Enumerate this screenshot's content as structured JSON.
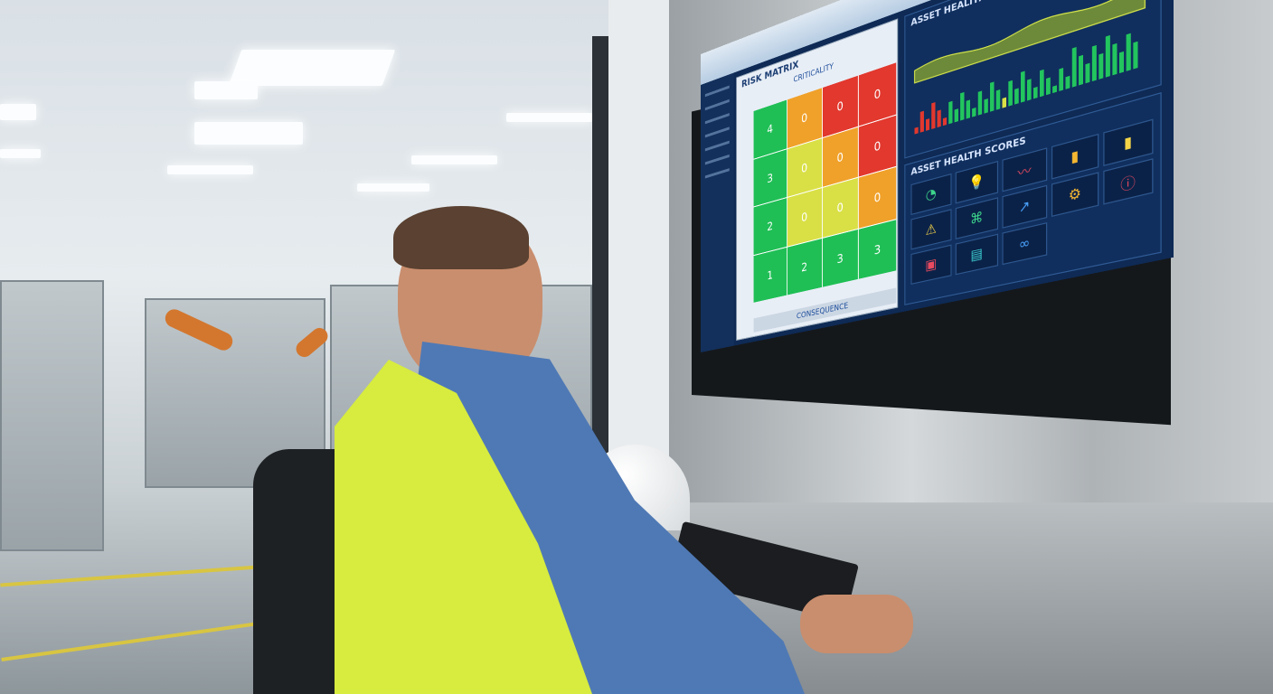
{
  "dashboard": {
    "matrix_title": "RISK MATRIX",
    "matrix_axis_top": "CRITICALITY",
    "matrix_axis_bottom": "CONSEQUENCE",
    "matrix_values": [
      [
        4,
        0,
        0,
        0
      ],
      [
        3,
        0,
        0,
        0
      ],
      [
        2,
        0,
        0,
        0
      ],
      [
        1,
        2,
        3,
        3
      ]
    ],
    "matrix_colors": [
      [
        "#1fbf55",
        "#f0a12a",
        "#e2382e",
        "#e2382e"
      ],
      [
        "#1fbf55",
        "#d9e046",
        "#f0a12a",
        "#e2382e"
      ],
      [
        "#1fbf55",
        "#d9e046",
        "#d9e046",
        "#f0a12a"
      ],
      [
        "#1fbf55",
        "#1fbf55",
        "#1fbf55",
        "#1fbf55"
      ]
    ],
    "chart_title": "ASSET HEALTH SCORES",
    "health_title": "ASSET HEALTH SCORES",
    "tile_icons": [
      "gauge-icon",
      "lightbulb-icon",
      "waveform-icon",
      "bar-chart-icon",
      "signal-bars-icon",
      "warning-icon",
      "network-icon",
      "line-chart-icon",
      "gear-icon",
      "alert-circle-icon",
      "battery-icon",
      "clipboard-icon",
      "link-icon"
    ],
    "tile_glyphs": [
      "◔",
      "💡",
      "〰",
      "▮",
      "▮",
      "⚠",
      "⌘",
      "↗",
      "⚙",
      "ⓘ",
      "▣",
      "▤",
      "∞"
    ],
    "colors": {
      "screen_bg": "#0e2a55",
      "chart_area": "#6d8a3a",
      "bars": "#22c55e"
    }
  }
}
